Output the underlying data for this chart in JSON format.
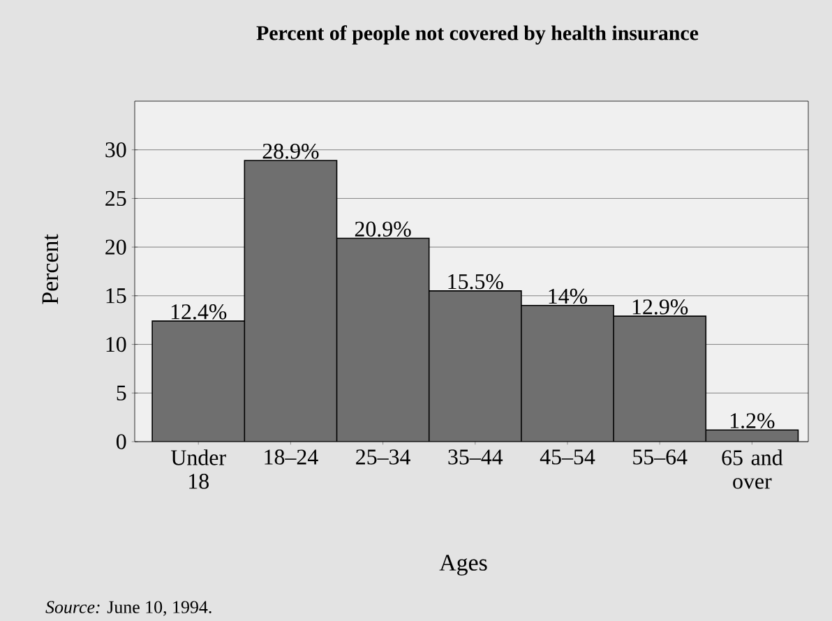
{
  "chart_data": {
    "type": "bar",
    "title": "Percent of people not covered by health insurance",
    "xlabel": "Ages",
    "ylabel": "Percent",
    "categories": [
      "Under 18",
      "18–24",
      "25–34",
      "35–44",
      "45–54",
      "55–64",
      "65 and over"
    ],
    "values": [
      12.4,
      28.9,
      20.9,
      15.5,
      14,
      12.9,
      1.2
    ],
    "value_labels": [
      "12.4%",
      "28.9%",
      "20.9%",
      "15.5%",
      "14%",
      "12.9%",
      "1.2%"
    ],
    "color": "#6f6f6f",
    "ylim": [
      0,
      35
    ],
    "yticks": [
      0,
      5,
      10,
      15,
      20,
      25,
      30
    ],
    "grid": "y",
    "annotations": [
      "*Source:* June 10, 1994."
    ]
  }
}
